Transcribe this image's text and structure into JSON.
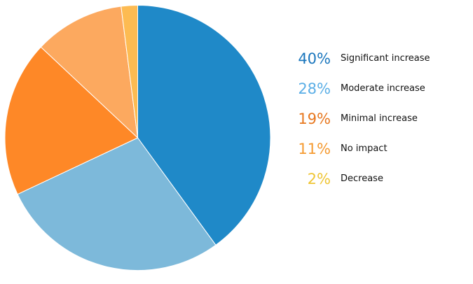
{
  "chart_data": {
    "type": "pie",
    "title": "",
    "slices": [
      {
        "label": "Significant increase",
        "value": 40,
        "value_label": "40%",
        "color": "#1f89c8",
        "label_color": "#1a76bd"
      },
      {
        "label": "Moderate increase",
        "value": 28,
        "value_label": "28%",
        "color": "#7db9da",
        "label_color": "#5aaee6"
      },
      {
        "label": "Minimal increase",
        "value": 19,
        "value_label": "19%",
        "color": "#fe8827",
        "label_color": "#e7771e"
      },
      {
        "label": "No impact",
        "value": 11,
        "value_label": "11%",
        "color": "#fca95f",
        "label_color": "#f59a30"
      },
      {
        "label": "Decrease",
        "value": 2,
        "value_label": "2%",
        "color": "#fdbb52",
        "label_color": "#efc534"
      }
    ],
    "legend_position": "right"
  }
}
